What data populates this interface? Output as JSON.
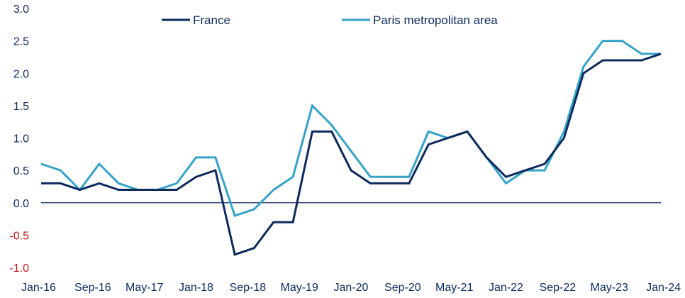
{
  "chart_data": {
    "type": "line",
    "title": "",
    "xlabel": "",
    "ylabel": "",
    "ylim": [
      -1.0,
      3.0
    ],
    "yticks": [
      "3.0",
      "2.5",
      "2.0",
      "1.5",
      "1.0",
      "0.5",
      "0.0",
      "-0.5",
      "-1.0"
    ],
    "ytick_values": [
      3.0,
      2.5,
      2.0,
      1.5,
      1.0,
      0.5,
      0.0,
      -0.5,
      -1.0
    ],
    "negative_tick_color": "#c0171f",
    "grid": false,
    "zero_line": true,
    "legend_position": "top-center",
    "x_tick_labels": [
      "Jan-16",
      "Sep-16",
      "May-17",
      "Jan-18",
      "Sep-18",
      "May-19",
      "Jan-20",
      "Sep-20",
      "May-21",
      "Jan-22",
      "Sep-22",
      "May-23",
      "Jan-24"
    ],
    "x": [
      "Jan-16",
      "Apr-16",
      "Jul-16",
      "Oct-16",
      "Jan-17",
      "Apr-17",
      "Jul-17",
      "Oct-17",
      "Jan-18",
      "Apr-18",
      "Jul-18",
      "Oct-18",
      "Jan-19",
      "Apr-19",
      "Jul-19",
      "Oct-19",
      "Jan-20",
      "Apr-20",
      "Jul-20",
      "Oct-20",
      "Jan-21",
      "Apr-21",
      "Jul-21",
      "Oct-21",
      "Jan-22",
      "Apr-22",
      "Jul-22",
      "Oct-22",
      "Jan-23",
      "Apr-23",
      "Jul-23",
      "Oct-23",
      "Jan-24"
    ],
    "series": [
      {
        "name": "France",
        "color": "#0d2a5c",
        "values": [
          0.3,
          0.3,
          0.2,
          0.3,
          0.2,
          0.2,
          0.2,
          0.2,
          0.4,
          0.5,
          -0.8,
          -0.7,
          -0.3,
          -0.3,
          1.1,
          1.1,
          0.5,
          0.3,
          0.3,
          0.3,
          0.9,
          1.0,
          1.1,
          0.7,
          0.4,
          0.5,
          0.6,
          1.0,
          2.0,
          2.2,
          2.2,
          2.2,
          2.3
        ]
      },
      {
        "name": "Paris metropolitan area",
        "color": "#35a3c8",
        "values": [
          0.6,
          0.5,
          0.2,
          0.6,
          0.3,
          0.2,
          0.2,
          0.3,
          0.7,
          0.7,
          -0.2,
          -0.1,
          0.2,
          0.4,
          1.5,
          1.2,
          0.8,
          0.4,
          0.4,
          0.4,
          1.1,
          1.0,
          1.1,
          0.7,
          0.3,
          0.5,
          0.5,
          1.1,
          2.1,
          2.5,
          2.5,
          2.3,
          2.3
        ]
      }
    ]
  }
}
